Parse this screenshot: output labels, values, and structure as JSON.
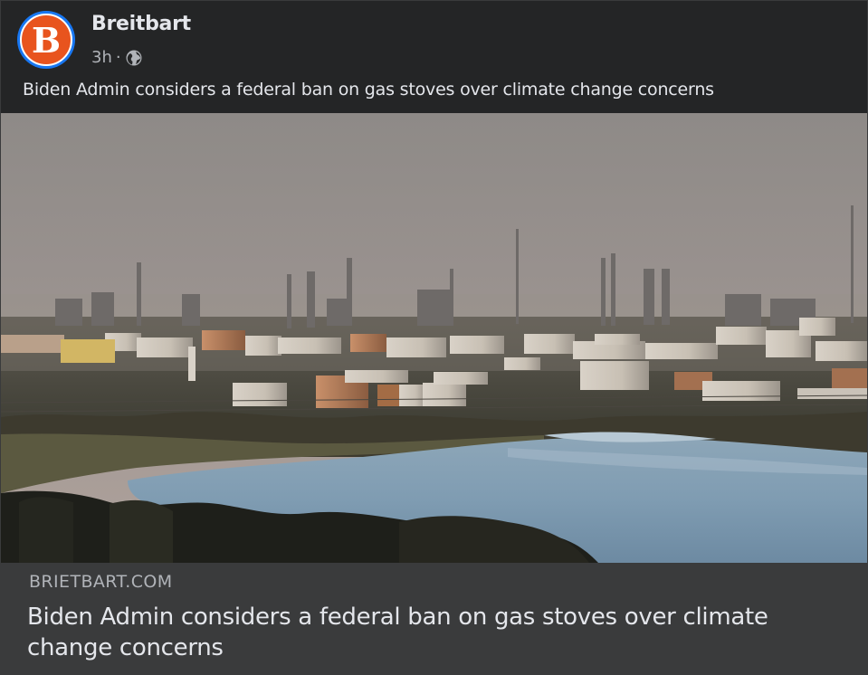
{
  "post": {
    "page_name": "Breitbart",
    "avatar_letter": "B",
    "time": "3h",
    "separator": "·",
    "privacy_icon": "globe-icon",
    "caption": "Biden Admin considers a federal ban on gas stoves over climate change concerns"
  },
  "image": {
    "subject": "industrial-refinery-photo"
  },
  "link": {
    "domain": "BRIETBART.COM",
    "title": "Biden Admin considers a federal ban on gas stoves over climate change concerns"
  },
  "colors": {
    "background": "#242526",
    "link_box": "#3a3b3c",
    "brand_orange": "#e8541e",
    "avatar_ring": "#1877f2"
  }
}
